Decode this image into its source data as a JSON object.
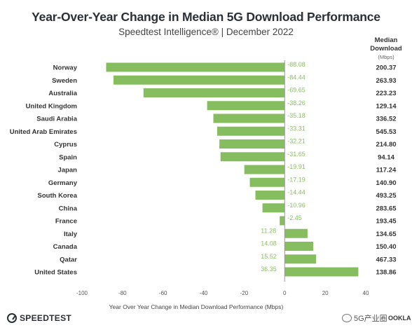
{
  "page": {
    "title": "Year-Over-Year Change in Median 5G Download Performance",
    "subtitle": "Speedtest Intelligence® | December 2022",
    "column_header": {
      "title": "Median Download",
      "unit": "(Mbps)"
    },
    "brand": "SPEEDTEST",
    "watermark": "5G产业圈",
    "ookla": "OOKLA"
  },
  "chart_data": {
    "type": "bar",
    "orientation": "horizontal",
    "categories": [
      "Norway",
      "Sweden",
      "Australia",
      "United Kingdom",
      "Saudi Arabia",
      "United Arab Emirates",
      "Cyprus",
      "Spain",
      "Japan",
      "Germany",
      "South Korea",
      "China",
      "France",
      "Italy",
      "Canada",
      "Qatar",
      "United States"
    ],
    "values": [
      -88.08,
      -84.44,
      -69.65,
      -38.26,
      -35.18,
      -33.31,
      -32.21,
      -31.65,
      -19.91,
      -17.19,
      -14.44,
      -10.96,
      -2.45,
      11.28,
      14.08,
      15.52,
      36.35
    ],
    "value_labels": [
      "-88.08",
      "-84.44",
      "-69.65",
      "-38.26",
      "-35.18",
      "-33.31",
      "-32.21",
      "-31.65",
      "-19.91",
      "-17.19",
      "-14.44",
      "-10.96",
      "-2.45",
      "11.28",
      "14.08",
      "15.52",
      "36.35"
    ],
    "median_download": [
      "200.37",
      "263.93",
      "223.23",
      "129.14",
      "336.52",
      "545.53",
      "214.80",
      "94.14",
      "117.24",
      "140.90",
      "493.25",
      "283.65",
      "193.45",
      "134.65",
      "150.40",
      "467.33",
      "138.86"
    ],
    "xlabel": "Year Over Year Change in Median Download Performance (Mbps)",
    "xlim": [
      -100,
      40
    ],
    "xticks": [
      -100,
      -80,
      -60,
      -40,
      -20,
      0,
      20,
      40
    ],
    "xtick_labels": [
      "-100",
      "-80",
      "-60",
      "-40",
      "-20",
      "0",
      "20",
      "40"
    ],
    "bar_color": "#86bd5f",
    "label_color": "#8cc063",
    "grid": false
  }
}
